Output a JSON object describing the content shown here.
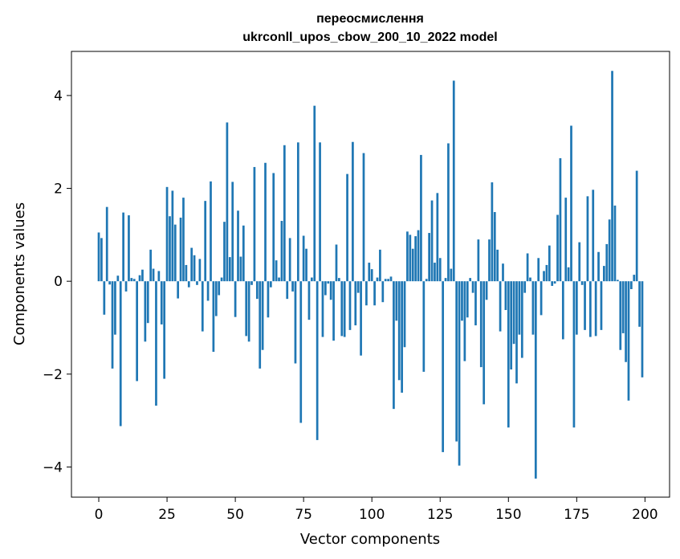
{
  "chart_data": {
    "type": "bar",
    "title": "переосмислення",
    "subtitle": "ukrconll_upos_cbow_200_10_2022 model",
    "xlabel": "Vector components",
    "ylabel": "Components values",
    "xlim": [
      -10,
      209
    ],
    "ylim": [
      -4.65,
      4.95
    ],
    "xticks": [
      0,
      25,
      50,
      75,
      100,
      125,
      150,
      175,
      200
    ],
    "yticks": [
      -4,
      -2,
      0,
      2,
      4
    ],
    "ytick_labels": [
      "−4",
      "−2",
      "0",
      "2",
      "4"
    ],
    "bar_color": "#1f77b4",
    "values": [
      1.05,
      0.93,
      -0.72,
      1.6,
      -0.07,
      -1.88,
      -1.15,
      0.12,
      -3.12,
      1.48,
      -0.22,
      1.42,
      0.07,
      0.05,
      -2.15,
      0.13,
      0.25,
      -1.3,
      -0.9,
      0.68,
      0.27,
      -2.68,
      0.22,
      -0.93,
      -2.1,
      2.03,
      1.4,
      1.95,
      1.22,
      -0.37,
      1.37,
      1.8,
      0.35,
      -0.13,
      0.72,
      0.56,
      -0.08,
      0.48,
      -1.08,
      1.73,
      -0.42,
      2.15,
      -1.52,
      -0.75,
      -0.3,
      0.08,
      1.28,
      3.42,
      0.52,
      2.14,
      -0.77,
      1.52,
      0.53,
      1.2,
      -1.18,
      -1.3,
      -0.08,
      2.46,
      -0.38,
      -1.88,
      -1.48,
      2.55,
      -0.78,
      -0.13,
      2.33,
      0.45,
      0.08,
      1.3,
      2.93,
      -0.38,
      0.93,
      -0.22,
      -1.77,
      2.99,
      -3.05,
      0.98,
      0.7,
      -0.83,
      0.08,
      3.78,
      -3.42,
      2.99,
      -1.2,
      -0.3,
      -0.05,
      -0.4,
      -1.28,
      0.79,
      0.07,
      -1.18,
      -1.2,
      2.31,
      -1.05,
      3.0,
      -0.95,
      -0.25,
      -1.6,
      2.76,
      -0.52,
      0.4,
      0.26,
      -0.52,
      0.08,
      0.68,
      -0.45,
      0.05,
      0.05,
      0.1,
      -2.75,
      -0.85,
      -2.13,
      -2.4,
      -1.42,
      1.07,
      1.0,
      0.7,
      0.97,
      1.1,
      2.72,
      -1.95,
      0.05,
      1.04,
      1.74,
      0.4,
      1.9,
      0.5,
      -3.68,
      0.07,
      2.97,
      0.27,
      4.32,
      -3.45,
      -3.97,
      -0.85,
      -1.72,
      -0.78,
      0.07,
      -0.25,
      -0.95,
      0.9,
      -1.85,
      -2.65,
      -0.4,
      0.9,
      2.13,
      1.49,
      0.68,
      -1.08,
      0.38,
      -0.62,
      -3.15,
      -1.9,
      -1.35,
      -2.2,
      -1.15,
      -1.65,
      -0.25,
      0.6,
      0.08,
      -1.15,
      -4.25,
      0.5,
      -0.73,
      0.22,
      0.35,
      0.77,
      -0.1,
      -0.05,
      1.43,
      2.65,
      -1.25,
      1.8,
      0.3,
      3.35,
      -3.15,
      -1.15,
      0.84,
      -0.08,
      -1.05,
      1.83,
      -1.2,
      1.97,
      -1.18,
      0.63,
      -1.05,
      0.33,
      0.8,
      1.33,
      4.53,
      1.63,
      0.03,
      -1.48,
      -1.12,
      -1.74,
      -2.57,
      -0.17,
      0.14,
      2.38,
      -0.98,
      -2.07
    ]
  }
}
